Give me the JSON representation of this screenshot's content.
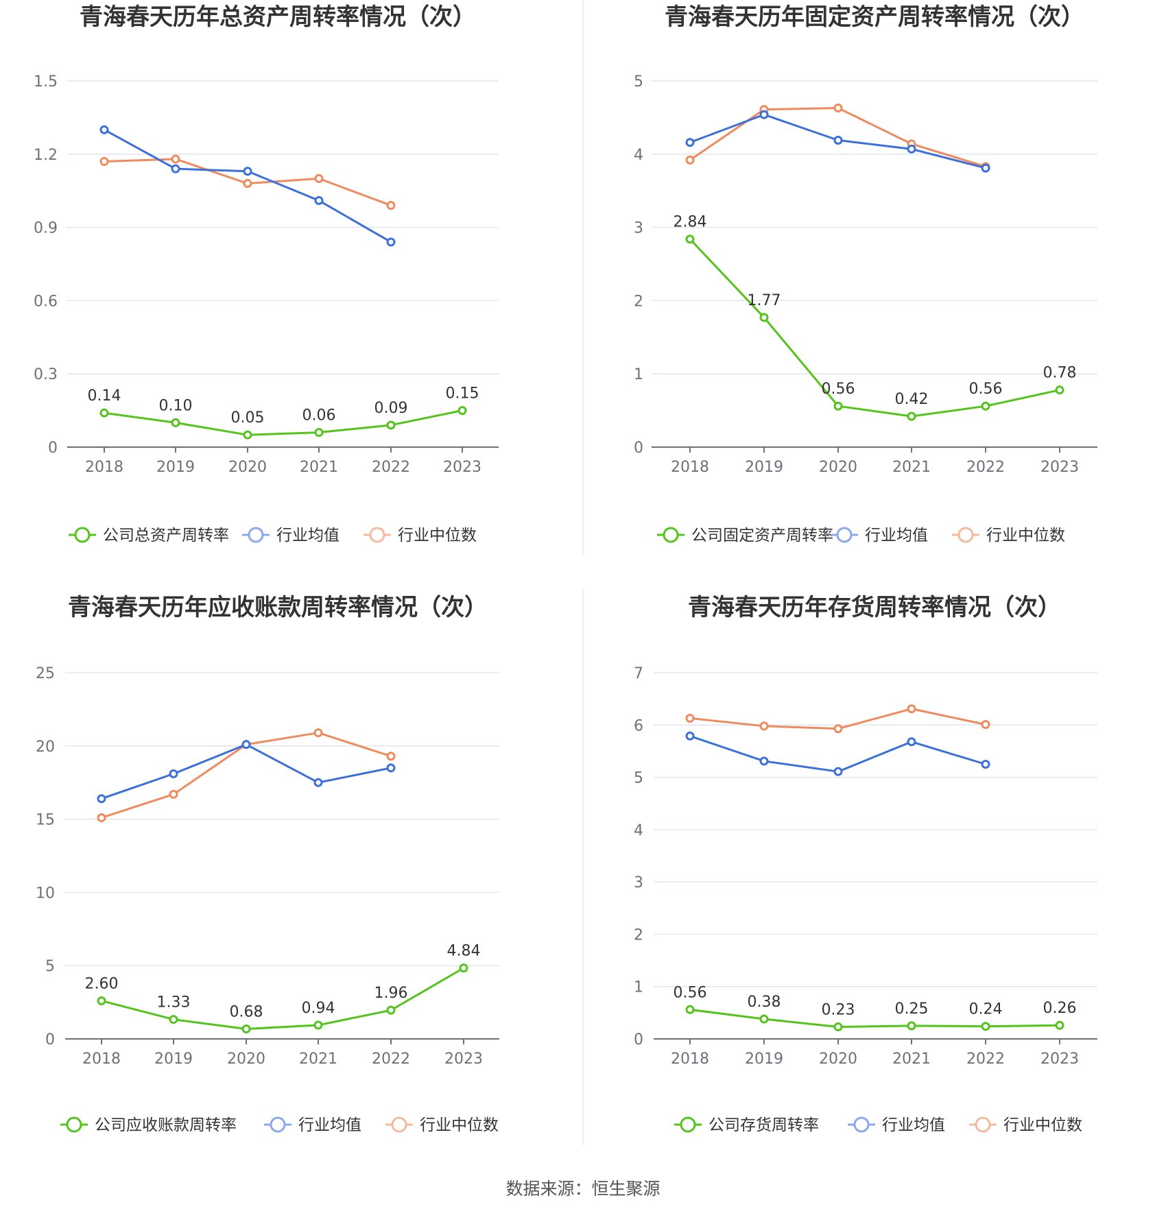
{
  "colors": {
    "company": "#52c41a",
    "avg": "#3a6fdc",
    "median": "#f08a5d",
    "legend_avg": "#8aa8ec",
    "legend_median": "#f5b99e",
    "grid": "#e0e6f1",
    "axis": "#6e7079"
  },
  "footer": {
    "source": "数据来源：恒生聚源"
  },
  "chart_data": [
    {
      "type": "line",
      "title": "青海春天历年总资产周转率情况（次）",
      "categories": [
        "2018",
        "2019",
        "2020",
        "2021",
        "2022",
        "2023"
      ],
      "ylim": [
        0,
        1.5
      ],
      "yticks": [
        "0",
        "0.3",
        "0.6",
        "0.9",
        "1.2",
        "1.5"
      ],
      "grid": true,
      "legend_position": "bottom",
      "series": [
        {
          "name": "公司总资产周转率",
          "key": "company",
          "labels": true,
          "values": [
            0.14,
            0.1,
            0.05,
            0.06,
            0.09,
            0.15
          ],
          "value_labels": [
            "0.14",
            "0.10",
            "0.05",
            "0.06",
            "0.09",
            "0.15"
          ]
        },
        {
          "name": "行业均值",
          "key": "avg",
          "values": [
            1.3,
            1.14,
            1.13,
            1.01,
            0.84,
            null
          ]
        },
        {
          "name": "行业中位数",
          "key": "median",
          "values": [
            1.17,
            1.18,
            1.08,
            1.1,
            0.99,
            null
          ]
        }
      ]
    },
    {
      "type": "line",
      "title": "青海春天历年固定资产周转率情况（次）",
      "categories": [
        "2018",
        "2019",
        "2020",
        "2021",
        "2022",
        "2023"
      ],
      "ylim": [
        0,
        5
      ],
      "yticks": [
        "0",
        "1",
        "2",
        "3",
        "4",
        "5"
      ],
      "grid": true,
      "legend_position": "bottom",
      "series": [
        {
          "name": "公司固定资产周转率",
          "key": "company",
          "labels": true,
          "values": [
            2.84,
            1.77,
            0.56,
            0.42,
            0.56,
            0.78
          ],
          "value_labels": [
            "2.84",
            "1.77",
            "0.56",
            "0.42",
            "0.56",
            "0.78"
          ]
        },
        {
          "name": "行业均值",
          "key": "avg",
          "values": [
            4.16,
            4.54,
            4.19,
            4.07,
            3.81,
            null
          ]
        },
        {
          "name": "行业中位数",
          "key": "median",
          "values": [
            3.92,
            4.61,
            4.63,
            4.14,
            3.83,
            null
          ]
        }
      ]
    },
    {
      "type": "line",
      "title": "青海春天历年应收账款周转率情况（次）",
      "categories": [
        "2018",
        "2019",
        "2020",
        "2021",
        "2022",
        "2023"
      ],
      "ylim": [
        0,
        25
      ],
      "yticks": [
        "0",
        "5",
        "10",
        "15",
        "20",
        "25"
      ],
      "grid": true,
      "legend_position": "bottom",
      "series": [
        {
          "name": "公司应收账款周转率",
          "key": "company",
          "labels": true,
          "values": [
            2.6,
            1.33,
            0.68,
            0.94,
            1.96,
            4.84
          ],
          "value_labels": [
            "2.60",
            "1.33",
            "0.68",
            "0.94",
            "1.96",
            "4.84"
          ]
        },
        {
          "name": "行业均值",
          "key": "avg",
          "values": [
            16.4,
            18.1,
            20.1,
            17.5,
            18.5,
            null
          ]
        },
        {
          "name": "行业中位数",
          "key": "median",
          "values": [
            15.1,
            16.7,
            20.1,
            20.9,
            19.3,
            null
          ]
        }
      ]
    },
    {
      "type": "line",
      "title": "青海春天历年存货周转率情况（次）",
      "categories": [
        "2018",
        "2019",
        "2020",
        "2021",
        "2022",
        "2023"
      ],
      "ylim": [
        0,
        7
      ],
      "yticks": [
        "0",
        "1",
        "2",
        "3",
        "4",
        "5",
        "6",
        "7"
      ],
      "grid": true,
      "legend_position": "bottom",
      "series": [
        {
          "name": "公司存货周转率",
          "key": "company",
          "labels": true,
          "values": [
            0.56,
            0.38,
            0.23,
            0.25,
            0.24,
            0.26
          ],
          "value_labels": [
            "0.56",
            "0.38",
            "0.23",
            "0.25",
            "0.24",
            "0.26"
          ]
        },
        {
          "name": "行业均值",
          "key": "avg",
          "values": [
            5.79,
            5.31,
            5.11,
            5.68,
            5.25,
            null
          ]
        },
        {
          "name": "行业中位数",
          "key": "median",
          "values": [
            6.13,
            5.98,
            5.93,
            6.31,
            6.01,
            null
          ]
        }
      ]
    }
  ]
}
